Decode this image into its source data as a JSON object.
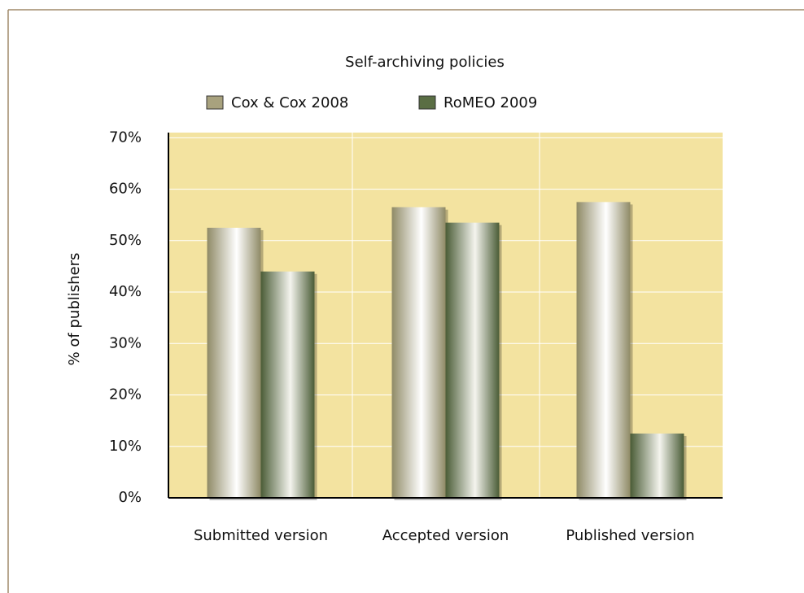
{
  "chart_data": {
    "type": "bar",
    "title": "Self-archiving policies",
    "ylabel": "% of publishers",
    "categories": [
      "Submitted version",
      "Accepted version",
      "Published version"
    ],
    "series": [
      {
        "name": "Cox & Cox 2008",
        "color": "#a8a27e",
        "values": [
          52.5,
          56.5,
          57.5
        ]
      },
      {
        "name": "RoMEO 2009",
        "color": "#5a6e44",
        "values": [
          44,
          53.5,
          12.5
        ]
      }
    ],
    "ylim": [
      0,
      71
    ],
    "yticks": [
      {
        "value": 0,
        "label": "0%"
      },
      {
        "value": 10,
        "label": "10%"
      },
      {
        "value": 20,
        "label": "20%"
      },
      {
        "value": 30,
        "label": "30%"
      },
      {
        "value": 40,
        "label": "40%"
      },
      {
        "value": 50,
        "label": "50%"
      },
      {
        "value": 60,
        "label": "60%"
      },
      {
        "value": 70,
        "label": "70%"
      }
    ],
    "grid": true
  }
}
